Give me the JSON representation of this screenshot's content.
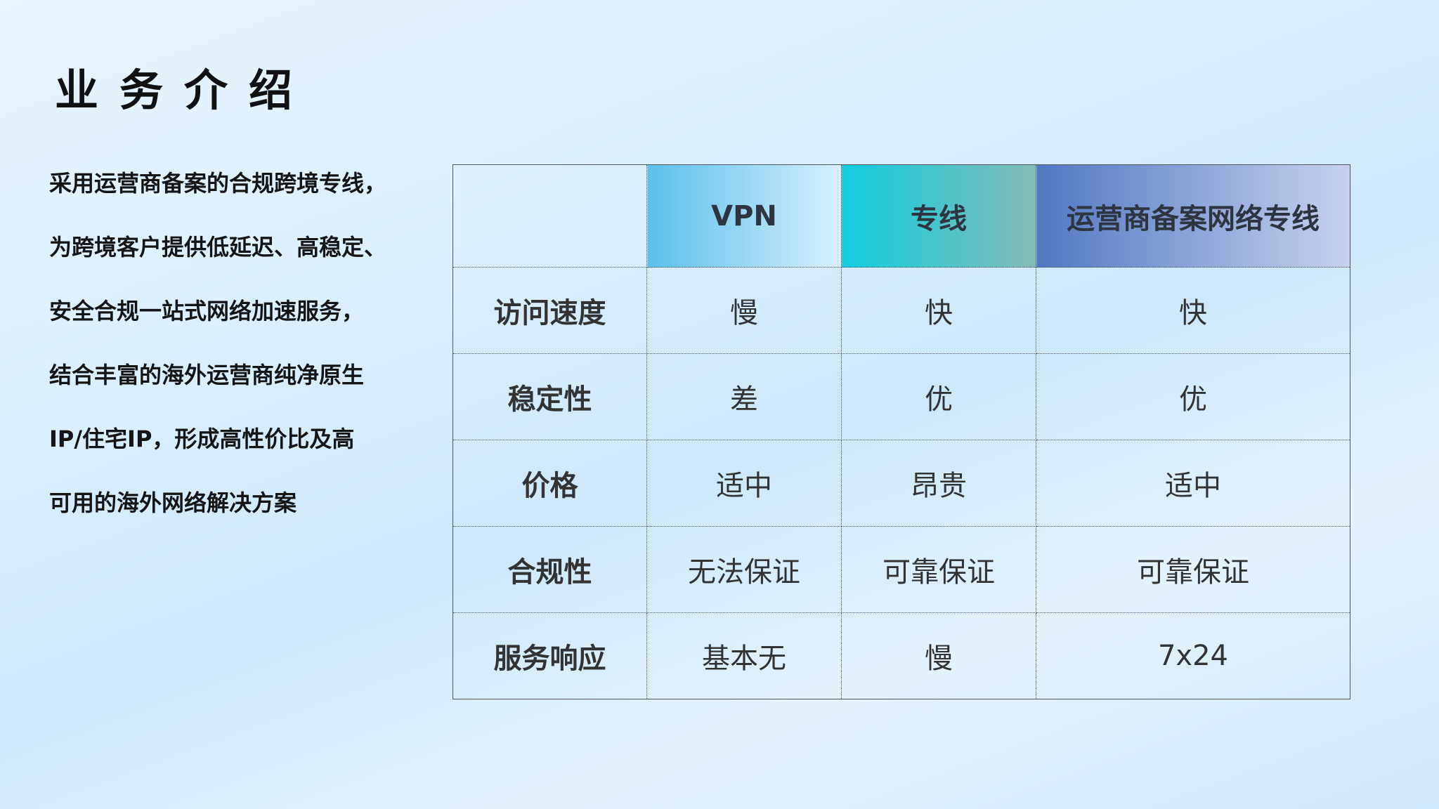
{
  "title": "业务介绍",
  "intro_lines": [
    "采用运营商备案的合规跨境专线，",
    "为跨境客户提供低延迟、高稳定、",
    "安全合规一站式网络加速服务，",
    "结合丰富的海外运营商纯净原生",
    "IP/住宅IP，形成高性价比及高",
    "可用的海外网络解决方案"
  ],
  "table": {
    "headers": [
      "",
      "VPN",
      "专线",
      "运营商备案网络专线"
    ],
    "header_colors": [
      "#5bbfec",
      "#10cde0",
      "#5177c3"
    ],
    "rows": [
      {
        "label": "访问速度",
        "cells": [
          "慢",
          "快",
          "快"
        ]
      },
      {
        "label": "稳定性",
        "cells": [
          "差",
          "优",
          "优"
        ]
      },
      {
        "label": "价格",
        "cells": [
          "适中",
          "昂贵",
          "适中"
        ]
      },
      {
        "label": "合规性",
        "cells": [
          "无法保证",
          "可靠保证",
          "可靠保证"
        ]
      },
      {
        "label": "服务响应",
        "cells": [
          "基本无",
          "慢",
          "7x24"
        ]
      }
    ]
  }
}
